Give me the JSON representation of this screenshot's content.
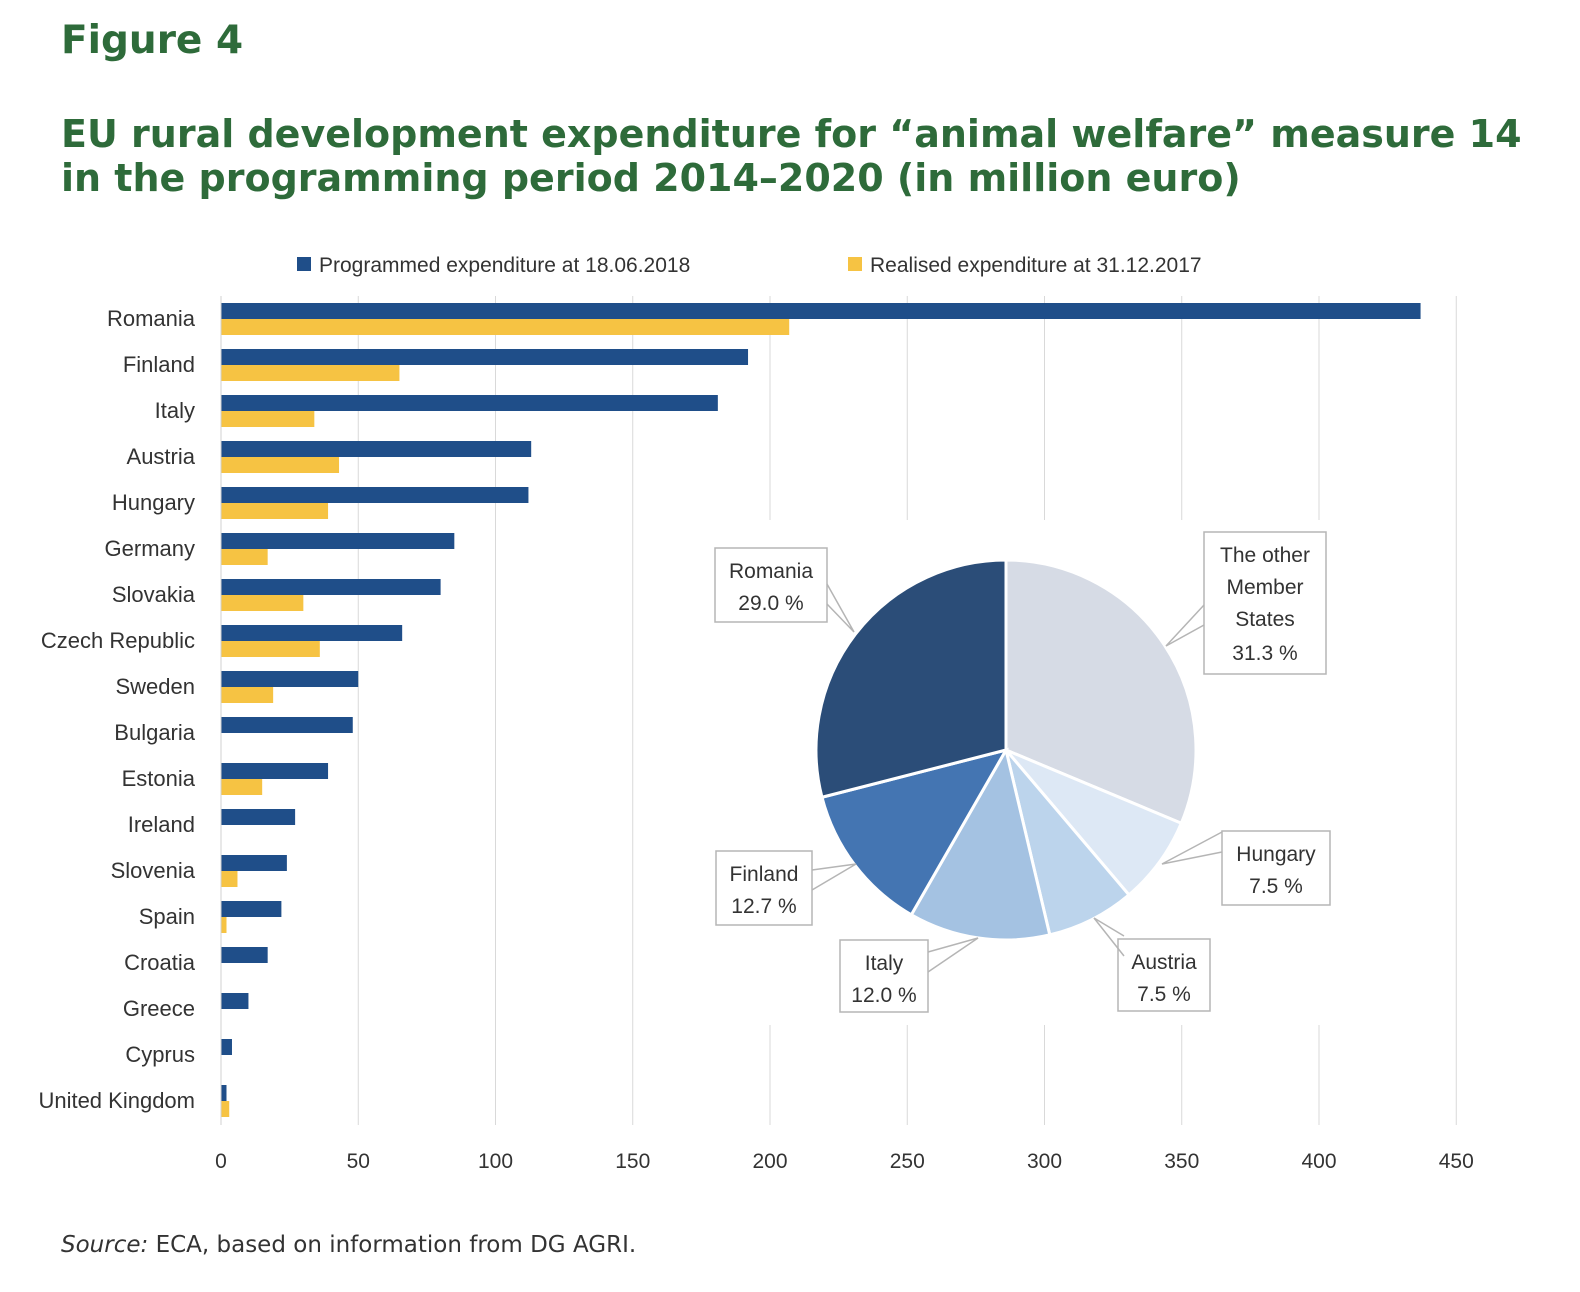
{
  "figure_label": "Figure 4",
  "title": "EU rural development expenditure for “animal welfare” measure 14 in the programming period 2014–2020 (in million euro)",
  "source": {
    "label": "Source:",
    "text": "ECA, based on information from DG AGRI."
  },
  "colors": {
    "title": "#2e6b3a",
    "programmed": "#1f4e89",
    "realised": "#f6c343",
    "grid": "#d9d9d9"
  },
  "chart_data": [
    {
      "type": "bar",
      "orientation": "horizontal",
      "categories": [
        "Romania",
        "Finland",
        "Italy",
        "Austria",
        "Hungary",
        "Germany",
        "Slovakia",
        "Czech Republic",
        "Sweden",
        "Bulgaria",
        "Estonia",
        "Ireland",
        "Slovenia",
        "Spain",
        "Croatia",
        "Greece",
        "Cyprus",
        "United Kingdom"
      ],
      "series": [
        {
          "name": "Programmed expenditure at 18.06.2018",
          "color": "#1f4e89",
          "values": [
            437,
            192,
            181,
            113,
            112,
            85,
            80,
            66,
            50,
            48,
            39,
            27,
            24,
            22,
            17,
            10,
            4,
            2
          ]
        },
        {
          "name": "Realised expenditure at 31.12.2017",
          "color": "#f6c343",
          "values": [
            207,
            65,
            34,
            43,
            39,
            17,
            30,
            36,
            19,
            0,
            15,
            0,
            6,
            2,
            0,
            0,
            0,
            3
          ]
        }
      ],
      "xlim": [
        0,
        450
      ],
      "xticks": [
        0,
        50,
        100,
        150,
        200,
        250,
        300,
        350,
        400,
        450
      ],
      "grid": true,
      "legend": "top"
    },
    {
      "type": "pie",
      "slices": [
        {
          "label": "The other Member States",
          "value": 31.3,
          "value_label": "31.3 %",
          "color": "#d6dbe5"
        },
        {
          "label": "Hungary",
          "value": 7.5,
          "value_label": "7.5 %",
          "color": "#dde8f5"
        },
        {
          "label": "Austria",
          "value": 7.5,
          "value_label": "7.5 %",
          "color": "#bcd4ec"
        },
        {
          "label": "Italy",
          "value": 12.0,
          "value_label": "12.0 %",
          "color": "#a4c2e2"
        },
        {
          "label": "Finland",
          "value": 12.7,
          "value_label": "12.7 %",
          "color": "#4475b2"
        },
        {
          "label": "Romania",
          "value": 29.0,
          "value_label": "29.0 %",
          "color": "#2b4d78"
        }
      ]
    }
  ]
}
